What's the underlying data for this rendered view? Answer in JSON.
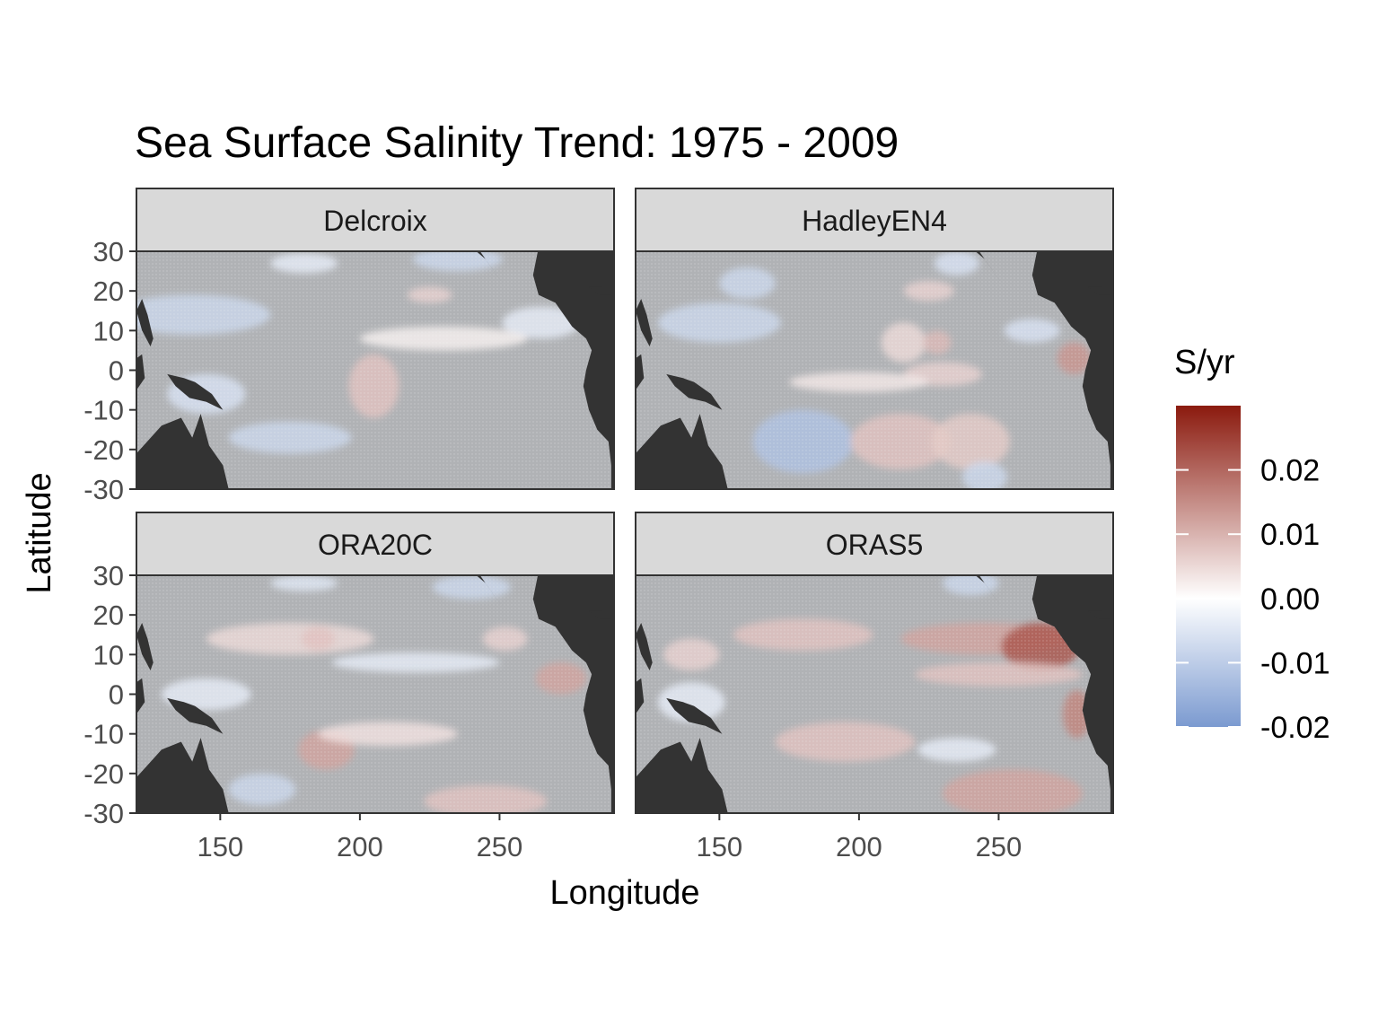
{
  "chart_data": {
    "type": "heatmap",
    "title": "Sea Surface Salinity Trend: 1975 - 2009",
    "xlabel": "Longitude",
    "ylabel": "Latitude",
    "xlim": [
      120,
      291
    ],
    "ylim": [
      -30,
      30
    ],
    "x_ticks": [
      150,
      200,
      250
    ],
    "y_ticks": [
      30,
      20,
      10,
      0,
      -10,
      -20,
      -30
    ],
    "colors": {
      "land": "#333333",
      "ocean_gray": "#b0b2b5",
      "strip_bg": "#d9d9d9",
      "high": "#8b1a0e",
      "mid": "#ffffff",
      "low": "#7b9ad0"
    },
    "legend": {
      "title": "S/yr",
      "placement": "right",
      "range": [
        -0.02,
        0.03
      ],
      "breaks": [
        "0.02",
        "0.01",
        "0.00",
        "-0.01",
        "-0.02"
      ]
    },
    "panels": [
      {
        "name": "Delcroix",
        "blobs": [
          {
            "lon": 140,
            "lat": 14,
            "rx": 28,
            "ry": 5,
            "value": -0.008
          },
          {
            "lon": 235,
            "lat": 28,
            "rx": 16,
            "ry": 3,
            "value": -0.008
          },
          {
            "lon": 180,
            "lat": 27,
            "rx": 12,
            "ry": 2.5,
            "value": -0.004
          },
          {
            "lon": 225,
            "lat": 19,
            "rx": 8,
            "ry": 2,
            "value": 0.006
          },
          {
            "lon": 205,
            "lat": -4,
            "rx": 9,
            "ry": 8,
            "value": 0.008
          },
          {
            "lon": 175,
            "lat": -17,
            "rx": 22,
            "ry": 4,
            "value": -0.008
          },
          {
            "lon": 145,
            "lat": -6,
            "rx": 14,
            "ry": 5,
            "value": -0.006
          },
          {
            "lon": 265,
            "lat": 12,
            "rx": 14,
            "ry": 4,
            "value": -0.004
          },
          {
            "lon": 230,
            "lat": 8,
            "rx": 30,
            "ry": 3,
            "value": 0.002
          }
        ]
      },
      {
        "name": "HadleyEN4",
        "blobs": [
          {
            "lon": 150,
            "lat": 12,
            "rx": 22,
            "ry": 5,
            "value": -0.008
          },
          {
            "lon": 160,
            "lat": 22,
            "rx": 10,
            "ry": 4,
            "value": -0.008
          },
          {
            "lon": 235,
            "lat": 27,
            "rx": 8,
            "ry": 3,
            "value": -0.006
          },
          {
            "lon": 225,
            "lat": 20,
            "rx": 9,
            "ry": 2.5,
            "value": 0.006
          },
          {
            "lon": 216,
            "lat": 7,
            "rx": 8,
            "ry": 5,
            "value": 0.005
          },
          {
            "lon": 228,
            "lat": 7,
            "rx": 5,
            "ry": 3,
            "value": 0.009
          },
          {
            "lon": 277,
            "lat": 3,
            "rx": 6,
            "ry": 4,
            "value": 0.014
          },
          {
            "lon": 230,
            "lat": -1,
            "rx": 14,
            "ry": 3,
            "value": 0.006
          },
          {
            "lon": 180,
            "lat": -18,
            "rx": 18,
            "ry": 8,
            "value": -0.012
          },
          {
            "lon": 215,
            "lat": -18,
            "rx": 18,
            "ry": 7,
            "value": 0.008
          },
          {
            "lon": 240,
            "lat": -18,
            "rx": 14,
            "ry": 7,
            "value": 0.007
          },
          {
            "lon": 245,
            "lat": -27,
            "rx": 8,
            "ry": 4,
            "value": -0.008
          },
          {
            "lon": 262,
            "lat": 10,
            "rx": 10,
            "ry": 3,
            "value": -0.006
          },
          {
            "lon": 200,
            "lat": -3,
            "rx": 25,
            "ry": 2.5,
            "value": 0.003
          }
        ]
      },
      {
        "name": "ORA20C",
        "blobs": [
          {
            "lon": 175,
            "lat": 14,
            "rx": 30,
            "ry": 4,
            "value": 0.005
          },
          {
            "lon": 185,
            "lat": 14,
            "rx": 6,
            "ry": 3,
            "value": 0.008
          },
          {
            "lon": 240,
            "lat": 27,
            "rx": 14,
            "ry": 3,
            "value": -0.008
          },
          {
            "lon": 180,
            "lat": 28,
            "rx": 12,
            "ry": 2,
            "value": -0.005
          },
          {
            "lon": 272,
            "lat": 4,
            "rx": 9,
            "ry": 4,
            "value": 0.012
          },
          {
            "lon": 252,
            "lat": 14,
            "rx": 8,
            "ry": 3,
            "value": 0.006
          },
          {
            "lon": 188,
            "lat": -14,
            "rx": 10,
            "ry": 5,
            "value": 0.012
          },
          {
            "lon": 210,
            "lat": -10,
            "rx": 25,
            "ry": 3,
            "value": 0.004
          },
          {
            "lon": 245,
            "lat": -27,
            "rx": 22,
            "ry": 4,
            "value": 0.008
          },
          {
            "lon": 165,
            "lat": -24,
            "rx": 12,
            "ry": 4,
            "value": -0.008
          },
          {
            "lon": 220,
            "lat": 8,
            "rx": 30,
            "ry": 2.5,
            "value": -0.004
          },
          {
            "lon": 145,
            "lat": 0,
            "rx": 16,
            "ry": 4,
            "value": -0.004
          }
        ]
      },
      {
        "name": "ORAS5",
        "blobs": [
          {
            "lon": 180,
            "lat": 15,
            "rx": 25,
            "ry": 4,
            "value": 0.008
          },
          {
            "lon": 245,
            "lat": 14,
            "rx": 30,
            "ry": 4,
            "value": 0.012
          },
          {
            "lon": 265,
            "lat": 12,
            "rx": 14,
            "ry": 6,
            "value": 0.022
          },
          {
            "lon": 250,
            "lat": 5,
            "rx": 30,
            "ry": 3,
            "value": 0.008
          },
          {
            "lon": 195,
            "lat": -12,
            "rx": 25,
            "ry": 5,
            "value": 0.008
          },
          {
            "lon": 255,
            "lat": -25,
            "rx": 25,
            "ry": 6,
            "value": 0.012
          },
          {
            "lon": 278,
            "lat": -5,
            "rx": 5,
            "ry": 6,
            "value": 0.016
          },
          {
            "lon": 140,
            "lat": -2,
            "rx": 12,
            "ry": 5,
            "value": -0.004
          },
          {
            "lon": 240,
            "lat": 28,
            "rx": 10,
            "ry": 3,
            "value": -0.008
          },
          {
            "lon": 235,
            "lat": -14,
            "rx": 14,
            "ry": 3,
            "value": -0.004
          },
          {
            "lon": 140,
            "lat": 10,
            "rx": 10,
            "ry": 4,
            "value": 0.006
          }
        ]
      }
    ]
  }
}
